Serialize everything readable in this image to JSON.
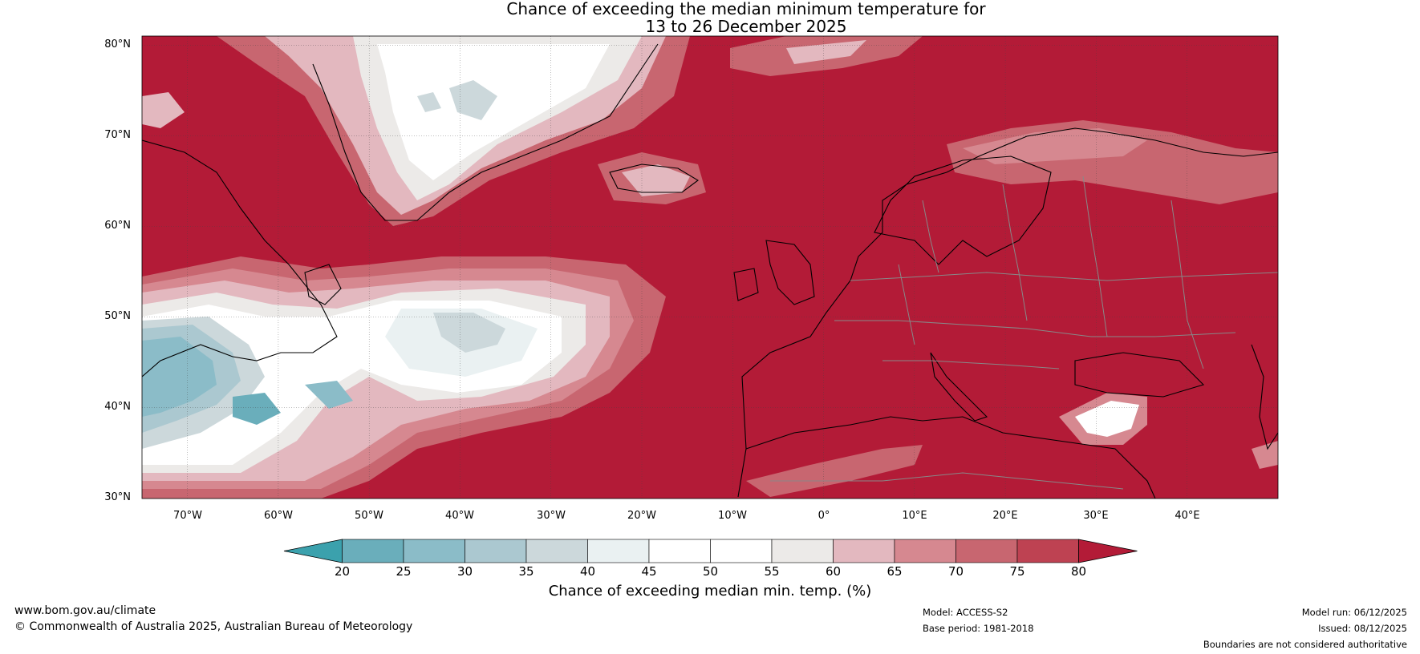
{
  "title_line1": "Chance of exceeding the median minimum temperature for",
  "title_line2": "13 to 26 December 2025",
  "lat_labels": [
    "80°N",
    "70°N",
    "60°N",
    "50°N",
    "40°N",
    "30°N"
  ],
  "lon_labels": [
    "70°W",
    "60°W",
    "50°W",
    "40°W",
    "30°W",
    "20°W",
    "10°W",
    "0°",
    "10°E",
    "20°E",
    "30°E",
    "40°E"
  ],
  "map": {
    "lon_range": [
      -75,
      50
    ],
    "lat_range": [
      30,
      81
    ],
    "background_category": "80+"
  },
  "colorbar": {
    "ticks": [
      "20",
      "25",
      "30",
      "35",
      "40",
      "45",
      "50",
      "55",
      "60",
      "65",
      "70",
      "75",
      "80"
    ],
    "colors": [
      "#3ba1ad",
      "#6aaebb",
      "#8bbcc8",
      "#abc8d0",
      "#ccd8db",
      "#eaf1f2",
      "#ffffff",
      "#ffffff",
      "#eceae8",
      "#e3b8bf",
      "#d68890",
      "#c86670",
      "#be4252",
      "#b31b37"
    ],
    "label": "Chance of exceeding median min. temp. (%)"
  },
  "footer": {
    "website": "www.bom.gov.au/climate",
    "copyright": "© Commonwealth of Australia 2025, Australian Bureau of Meteorology",
    "model": "Model: ACCESS-S2",
    "base_period": "Base period: 1981-2018",
    "model_run": "Model run: 06/12/2025",
    "issued": "Issued: 08/12/2025",
    "disclaimer": "Boundaries are not considered authoritative"
  }
}
